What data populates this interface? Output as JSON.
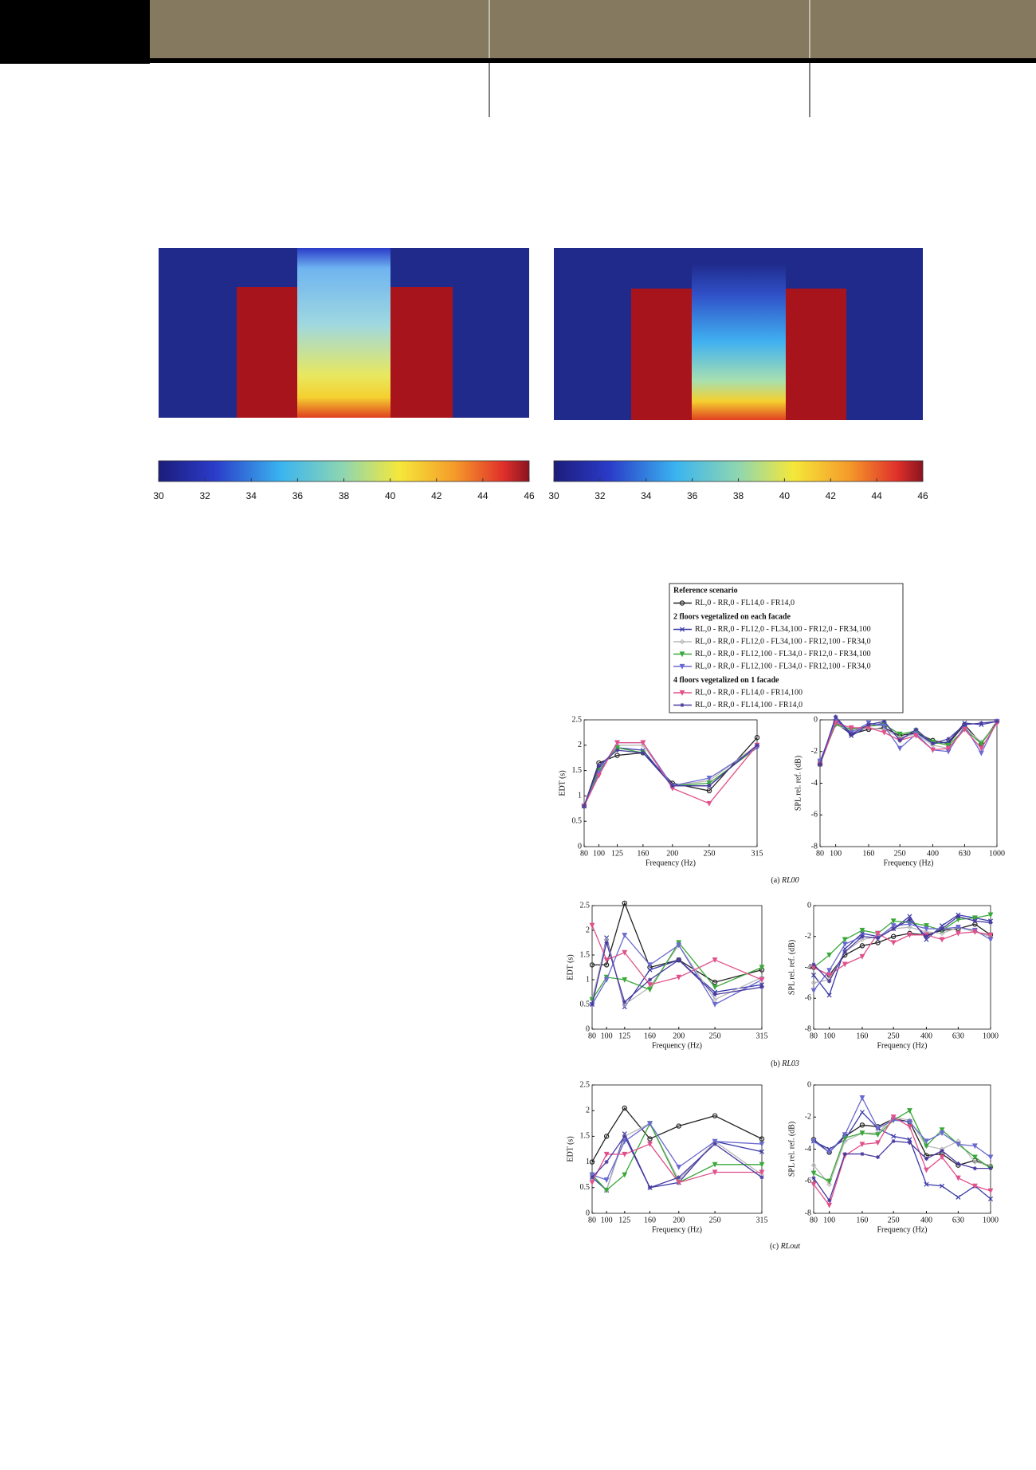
{
  "colorbars": [
    {
      "lim": [
        30,
        46
      ],
      "ticks": [
        30,
        32,
        34,
        36,
        38,
        40,
        42,
        44,
        46
      ]
    },
    {
      "lim": [
        30,
        46
      ],
      "ticks": [
        30,
        32,
        34,
        36,
        38,
        40,
        42,
        44,
        46
      ]
    }
  ],
  "legend": {
    "groups": [
      {
        "title": "Reference scenario",
        "entries": [
          {
            "name": "RL,0 - RR,0 - FL14,0 - FR14,0",
            "color": "#222222",
            "marker": "circle"
          }
        ]
      },
      {
        "title": "2 floors vegetalized on each facade",
        "entries": [
          {
            "name": "RL,0 - RR,0 - FL12,0 - FL34,100 - FR12,0 - FR34,100",
            "color": "#3a3aa8",
            "marker": "cross"
          },
          {
            "name": "RL,0 - RR,0 - FL12,0 - FL34,100 - FR12,100 - FR34,0",
            "color": "#b8b8b8",
            "marker": "diamond"
          },
          {
            "name": "RL,0 - RR,0 - FL12,100 - FL34,0 - FR12,0 - FR34,100",
            "color": "#3aa83a",
            "marker": "triangle"
          },
          {
            "name": "RL,0 - RR,0 - FL12,100 - FL34,0 - FR12,100 - FR34,0",
            "color": "#6a6ad0",
            "marker": "triangle"
          }
        ]
      },
      {
        "title": "4 floors vegetalized on 1 facade",
        "entries": [
          {
            "name": "RL,0 - RR,0 - FL14,0 - FR14,100",
            "color": "#e0508a",
            "marker": "triangle"
          },
          {
            "name": "RL,0 - RR,0 - FL14,100 - FR14,0",
            "color": "#4a3aa0",
            "marker": "star"
          }
        ]
      }
    ]
  },
  "figure_captions": [
    {
      "label": "(a)",
      "name": "RL00"
    },
    {
      "label": "(b)",
      "name": "RL03"
    },
    {
      "label": "(c)",
      "name": "RLout"
    }
  ],
  "chart_data": [
    {
      "type": "line",
      "xlabel": "Frequency (Hz)",
      "ylabel": "EDT (s)",
      "x": [
        80,
        100,
        125,
        160,
        200,
        250,
        315
      ],
      "xlim": [
        80,
        315
      ],
      "xticks": [
        80,
        100,
        125,
        160,
        200,
        250,
        315
      ],
      "ylim": [
        0,
        2.5
      ],
      "yticks": [
        0,
        0.5,
        1,
        1.5,
        2,
        2.5
      ],
      "log_x": false,
      "series": [
        {
          "values": [
            0.8,
            1.65,
            1.8,
            1.85,
            1.25,
            1.1,
            2.15
          ]
        },
        {
          "values": [
            0.8,
            1.55,
            1.95,
            1.9,
            1.2,
            1.2,
            2.0
          ]
        },
        {
          "values": [
            0.8,
            1.5,
            2.0,
            2.0,
            1.2,
            1.3,
            2.0
          ]
        },
        {
          "values": [
            0.8,
            1.5,
            1.95,
            1.85,
            1.2,
            1.25,
            1.95
          ]
        },
        {
          "values": [
            0.8,
            1.45,
            2.05,
            2.05,
            1.2,
            1.35,
            1.95
          ]
        },
        {
          "values": [
            0.8,
            1.4,
            2.05,
            2.05,
            1.15,
            0.85,
            2.0
          ]
        },
        {
          "values": [
            0.8,
            1.6,
            1.9,
            1.85,
            1.2,
            1.2,
            2.0
          ]
        }
      ]
    },
    {
      "type": "line",
      "xlabel": "Frequency (Hz)",
      "ylabel": "SPL rel. ref. (dB)",
      "x": [
        80,
        100,
        125,
        160,
        200,
        250,
        315,
        400,
        500,
        630,
        800,
        1000
      ],
      "xlim": [
        80,
        1000
      ],
      "xticks": [
        80,
        100,
        160,
        250,
        400,
        630,
        1000
      ],
      "ylim": [
        -8,
        0
      ],
      "yticks": [
        -8,
        -6,
        -4,
        -2,
        0
      ],
      "log_x": true,
      "series": [
        {
          "values": [
            -2.8,
            -0.2,
            -0.9,
            -0.6,
            -0.5,
            -1.0,
            -0.8,
            -1.3,
            -1.5,
            -0.3,
            -1.5,
            -0.1
          ]
        },
        {
          "values": [
            -2.8,
            0.1,
            -1.0,
            -0.4,
            -0.2,
            -1.2,
            -0.8,
            -1.5,
            -1.4,
            -0.2,
            -0.3,
            -0.1
          ]
        },
        {
          "values": [
            -2.7,
            -0.3,
            -0.7,
            -0.5,
            -0.6,
            -1.1,
            -0.9,
            -1.6,
            -1.8,
            -0.5,
            -1.4,
            -0.2
          ]
        },
        {
          "values": [
            -2.7,
            -0.3,
            -0.6,
            -0.4,
            -0.3,
            -0.9,
            -0.7,
            -1.4,
            -1.6,
            -0.6,
            -1.5,
            -0.2
          ]
        },
        {
          "values": [
            -2.6,
            -0.1,
            -0.8,
            -0.2,
            -0.4,
            -1.8,
            -0.9,
            -1.9,
            -2.0,
            -0.4,
            -2.1,
            -0.1
          ]
        },
        {
          "values": [
            -2.8,
            -0.2,
            -0.5,
            -0.5,
            -0.8,
            -1.3,
            -1.0,
            -1.9,
            -1.8,
            -0.6,
            -1.8,
            -0.2
          ]
        },
        {
          "values": [
            -2.8,
            0.2,
            -0.9,
            -0.3,
            -0.1,
            -1.3,
            -0.6,
            -1.5,
            -1.2,
            -0.3,
            -0.2,
            -0.1
          ]
        }
      ]
    },
    {
      "type": "line",
      "xlabel": "Frequency (Hz)",
      "ylabel": "EDT (s)",
      "x": [
        80,
        100,
        125,
        160,
        200,
        250,
        315
      ],
      "xlim": [
        80,
        315
      ],
      "xticks": [
        80,
        100,
        125,
        160,
        200,
        250,
        315
      ],
      "ylim": [
        0,
        2.5
      ],
      "yticks": [
        0,
        0.5,
        1,
        1.5,
        2,
        2.5
      ],
      "log_x": false,
      "series": [
        {
          "values": [
            1.3,
            1.3,
            2.55,
            1.25,
            1.4,
            0.95,
            1.2
          ]
        },
        {
          "values": [
            0.5,
            1.85,
            0.45,
            1.2,
            1.4,
            0.75,
            0.9
          ]
        },
        {
          "values": [
            0.6,
            1.8,
            0.5,
            0.85,
            1.7,
            0.6,
            1.05
          ]
        },
        {
          "values": [
            0.6,
            1.05,
            1.0,
            0.8,
            1.75,
            0.85,
            1.25
          ]
        },
        {
          "values": [
            0.5,
            1.0,
            1.9,
            1.3,
            1.7,
            0.5,
            1.0
          ]
        },
        {
          "values": [
            2.1,
            1.4,
            1.55,
            0.9,
            1.05,
            1.4,
            1.0
          ]
        },
        {
          "values": [
            0.5,
            1.75,
            0.55,
            1.0,
            1.4,
            0.7,
            0.85
          ]
        }
      ]
    },
    {
      "type": "line",
      "xlabel": "Frequency (Hz)",
      "ylabel": "SPL rel. ref. (dB)",
      "x": [
        80,
        100,
        125,
        160,
        200,
        250,
        315,
        400,
        500,
        630,
        800,
        1000
      ],
      "xlim": [
        80,
        1000
      ],
      "xticks": [
        80,
        100,
        160,
        250,
        400,
        630,
        1000
      ],
      "ylim": [
        -8,
        0
      ],
      "yticks": [
        -8,
        -6,
        -4,
        -2,
        0
      ],
      "log_x": true,
      "series": [
        {
          "values": [
            -4.0,
            -4.5,
            -3.2,
            -2.6,
            -2.4,
            -2.0,
            -1.8,
            -1.9,
            -1.6,
            -1.5,
            -1.2,
            -1.9
          ]
        },
        {
          "values": [
            -4.5,
            -5.8,
            -2.8,
            -1.8,
            -2.0,
            -1.5,
            -0.7,
            -2.2,
            -1.3,
            -0.6,
            -0.8,
            -1.0
          ]
        },
        {
          "values": [
            -5.0,
            -4.8,
            -3.0,
            -2.2,
            -2.0,
            -1.5,
            -1.4,
            -1.7,
            -1.8,
            -1.4,
            -1.7,
            -2.0
          ]
        },
        {
          "values": [
            -4.0,
            -3.2,
            -2.2,
            -1.6,
            -1.8,
            -1.0,
            -1.1,
            -1.3,
            -1.6,
            -0.9,
            -0.8,
            -0.6
          ]
        },
        {
          "values": [
            -5.5,
            -4.2,
            -2.5,
            -2.0,
            -2.1,
            -1.3,
            -1.2,
            -1.5,
            -1.5,
            -1.4,
            -1.6,
            -2.2
          ]
        },
        {
          "values": [
            -4.0,
            -4.5,
            -3.8,
            -3.3,
            -1.8,
            -2.4,
            -1.9,
            -1.9,
            -2.2,
            -1.8,
            -1.7,
            -1.9
          ]
        },
        {
          "values": [
            -3.8,
            -4.9,
            -3.0,
            -2.0,
            -2.1,
            -1.5,
            -0.9,
            -2.0,
            -1.5,
            -0.7,
            -1.0,
            -1.1
          ]
        }
      ]
    },
    {
      "type": "line",
      "xlabel": "Frequency (Hz)",
      "ylabel": "EDT (s)",
      "x": [
        80,
        100,
        125,
        160,
        200,
        250,
        315
      ],
      "xlim": [
        80,
        315
      ],
      "xticks": [
        80,
        100,
        125,
        160,
        200,
        250,
        315
      ],
      "ylim": [
        0,
        2.5
      ],
      "yticks": [
        0,
        0.5,
        1,
        1.5,
        2,
        2.5
      ],
      "log_x": false,
      "series": [
        {
          "values": [
            1.0,
            1.5,
            2.05,
            1.45,
            1.7,
            1.9,
            1.45
          ]
        },
        {
          "values": [
            0.7,
            0.45,
            1.55,
            0.5,
            0.6,
            1.4,
            1.2
          ]
        },
        {
          "values": [
            0.75,
            0.45,
            1.5,
            1.75,
            0.65,
            1.4,
            0.75
          ]
        },
        {
          "values": [
            0.75,
            0.45,
            0.75,
            1.75,
            0.6,
            0.95,
            0.95
          ]
        },
        {
          "values": [
            0.75,
            0.65,
            1.4,
            1.75,
            0.9,
            1.4,
            1.35
          ]
        },
        {
          "values": [
            0.6,
            1.15,
            1.15,
            1.35,
            0.6,
            0.8,
            0.8
          ]
        },
        {
          "values": [
            0.7,
            1.0,
            1.5,
            0.5,
            0.7,
            1.35,
            0.7
          ]
        }
      ]
    },
    {
      "type": "line",
      "xlabel": "Frequency (Hz)",
      "ylabel": "SPL rel. ref. (dB)",
      "x": [
        80,
        100,
        125,
        160,
        200,
        250,
        315,
        400,
        500,
        630,
        800,
        1000
      ],
      "xlim": [
        80,
        1000
      ],
      "xticks": [
        80,
        100,
        160,
        250,
        400,
        630,
        1000
      ],
      "ylim": [
        -8,
        0
      ],
      "yticks": [
        -8,
        -6,
        -4,
        -2,
        0
      ],
      "log_x": true,
      "series": [
        {
          "values": [
            -3.4,
            -4.2,
            -3.2,
            -2.5,
            -2.6,
            -2.1,
            -2.3,
            -4.4,
            -4.3,
            -5.0,
            -4.7,
            -5.1
          ]
        },
        {
          "values": [
            -3.5,
            -4.0,
            -3.4,
            -1.7,
            -2.7,
            -3.2,
            -3.4,
            -6.2,
            -6.3,
            -7.0,
            -6.3,
            -7.1
          ]
        },
        {
          "values": [
            -5.0,
            -6.2,
            -3.5,
            -3.0,
            -3.0,
            -2.0,
            -2.2,
            -3.8,
            -4.0,
            -3.5,
            -4.8,
            -5.0
          ]
        },
        {
          "values": [
            -5.5,
            -6.0,
            -3.3,
            -3.0,
            -3.1,
            -2.2,
            -1.6,
            -3.8,
            -2.8,
            -3.7,
            -4.5,
            -5.2
          ]
        },
        {
          "values": [
            -3.5,
            -4.2,
            -3.1,
            -0.8,
            -2.7,
            -2.2,
            -2.3,
            -3.5,
            -3.0,
            -3.7,
            -3.8,
            -4.5
          ]
        },
        {
          "values": [
            -6.2,
            -7.5,
            -4.4,
            -3.7,
            -3.6,
            -2.0,
            -2.6,
            -5.3,
            -4.5,
            -5.8,
            -6.3,
            -6.6
          ]
        },
        {
          "values": [
            -5.8,
            -7.2,
            -4.3,
            -4.3,
            -4.5,
            -3.5,
            -3.6,
            -4.6,
            -4.1,
            -4.9,
            -5.2,
            -5.2
          ]
        }
      ]
    }
  ]
}
